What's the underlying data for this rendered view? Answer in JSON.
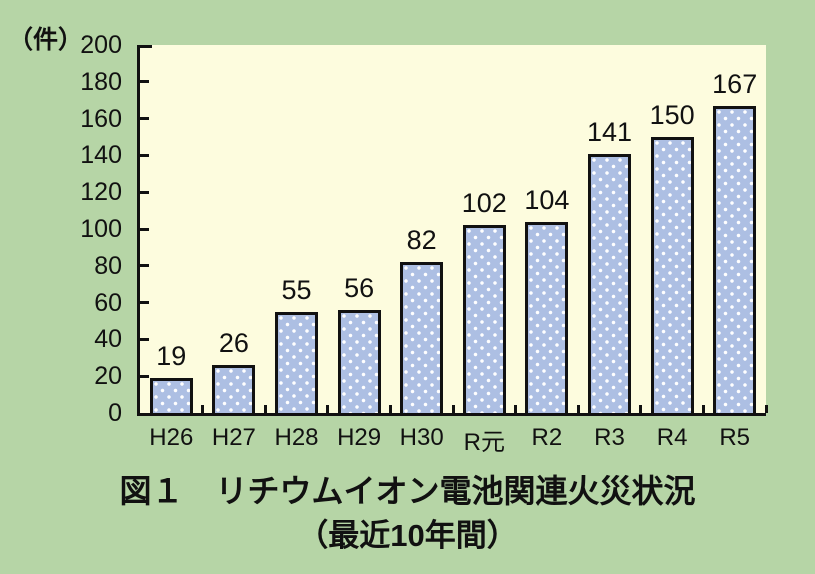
{
  "chart_data": {
    "type": "bar",
    "title": "図１　リチウムイオン電池関連火災状況（最近10年間）",
    "title_line1": "図１　リチウムイオン電池関連火災状況",
    "title_line2": "（最近10年間）",
    "unit_label": "（件）",
    "xlabel": "",
    "ylabel": "件",
    "categories": [
      "H26",
      "H27",
      "H28",
      "H29",
      "H30",
      "R元",
      "R2",
      "R3",
      "R4",
      "R5"
    ],
    "values": [
      19,
      26,
      55,
      56,
      82,
      102,
      104,
      141,
      150,
      167
    ],
    "ylim": [
      0,
      200
    ],
    "ytick_step": 20,
    "yticks": [
      0,
      20,
      40,
      60,
      80,
      100,
      120,
      140,
      160,
      180,
      200
    ],
    "grid": false,
    "legend": "none",
    "bar_value_labels_shown": true,
    "colors": {
      "background": "#b6d5a6",
      "plot_background": "#fdfcde",
      "bar_fill": "#adbfe3",
      "bar_dots": "#ffffff",
      "bar_border": "#111111",
      "axis": "#111111",
      "text": "#111111"
    }
  }
}
